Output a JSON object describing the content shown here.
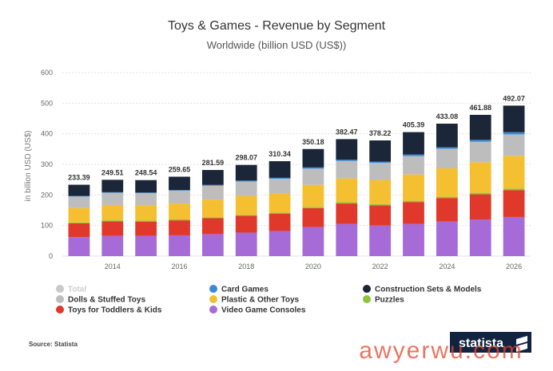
{
  "chart_data": {
    "type": "bar",
    "stacked": true,
    "title": "Toys & Games - Revenue by Segment",
    "subtitle": "Worldwide (billion USD (US$))",
    "ylabel": "in billion USD (US$)",
    "xlabel": "",
    "ylim": [
      0,
      600
    ],
    "yticks": [
      "0",
      "100",
      "200",
      "300",
      "400",
      "500",
      "600"
    ],
    "x": [
      2013,
      2014,
      2015,
      2016,
      2017,
      2018,
      2019,
      2020,
      2021,
      2022,
      2023,
      2024,
      2025,
      2026
    ],
    "xtick_labels": [
      "2014",
      "2016",
      "2018",
      "2020",
      "2022",
      "2024",
      "2026"
    ],
    "totals": [
      "233.39",
      "249.51",
      "248.54",
      "259.65",
      "281.59",
      "298.07",
      "310.34",
      "350.18",
      "382.47",
      "378.22",
      "405.39",
      "433.08",
      "461.88",
      "492.07"
    ],
    "grid": true,
    "legend_position": "bottom",
    "series": [
      {
        "name": "Video Game Consoles",
        "color": "#a66bd6",
        "values": [
          62,
          66,
          66,
          68,
          72,
          77,
          82,
          95,
          105,
          100,
          105,
          113,
          120,
          128
        ]
      },
      {
        "name": "Toys for Toddlers & Kids",
        "color": "#e0392b",
        "values": [
          45,
          48,
          47,
          49,
          52,
          55,
          57,
          62,
          67,
          66,
          72,
          77,
          82,
          88
        ]
      },
      {
        "name": "Puzzles",
        "color": "#8cc43c",
        "values": [
          3,
          3,
          3,
          3,
          3,
          3,
          3,
          4,
          4,
          4,
          4,
          4,
          5,
          5
        ]
      },
      {
        "name": "Plastic & Other Toys",
        "color": "#f4c032",
        "values": [
          47,
          50,
          50,
          52,
          58,
          62,
          63,
          72,
          78,
          79,
          86,
          93,
          100,
          107
        ]
      },
      {
        "name": "Dolls & Stuffed Toys",
        "color": "#bdbdbd",
        "values": [
          38,
          40,
          40,
          42,
          45,
          47,
          48,
          53,
          57,
          56,
          60,
          64,
          67,
          70
        ]
      },
      {
        "name": "Card Games",
        "color": "#3c8ad6",
        "values": [
          2,
          2,
          2,
          2,
          3,
          3,
          3,
          4,
          4,
          4,
          5,
          5,
          6,
          7
        ]
      },
      {
        "name": "Construction Sets & Models",
        "color": "#1b2638",
        "values": [
          36.39,
          40.51,
          40.54,
          43.65,
          48.59,
          51.07,
          54.34,
          60.18,
          67.47,
          69.22,
          73.39,
          77.08,
          81.88,
          87.07
        ]
      }
    ]
  },
  "legend": {
    "col1": [
      {
        "label": "Total",
        "color": "#c9c9c9"
      },
      {
        "label": "Dolls & Stuffed Toys",
        "color": "#bdbdbd"
      },
      {
        "label": "Toys for Toddlers & Kids",
        "color": "#e0392b"
      }
    ],
    "col2": [
      {
        "label": "Card Games",
        "color": "#3c8ad6"
      },
      {
        "label": "Plastic & Other Toys",
        "color": "#f4c032"
      },
      {
        "label": "Video Game Consoles",
        "color": "#a66bd6"
      }
    ],
    "col3": [
      {
        "label": "Construction Sets & Models",
        "color": "#1b2638"
      },
      {
        "label": "Puzzles",
        "color": "#8cc43c"
      }
    ]
  },
  "footer": {
    "source": "Source: Statista",
    "brand": "statista",
    "watermark": "awyerwu.com"
  }
}
